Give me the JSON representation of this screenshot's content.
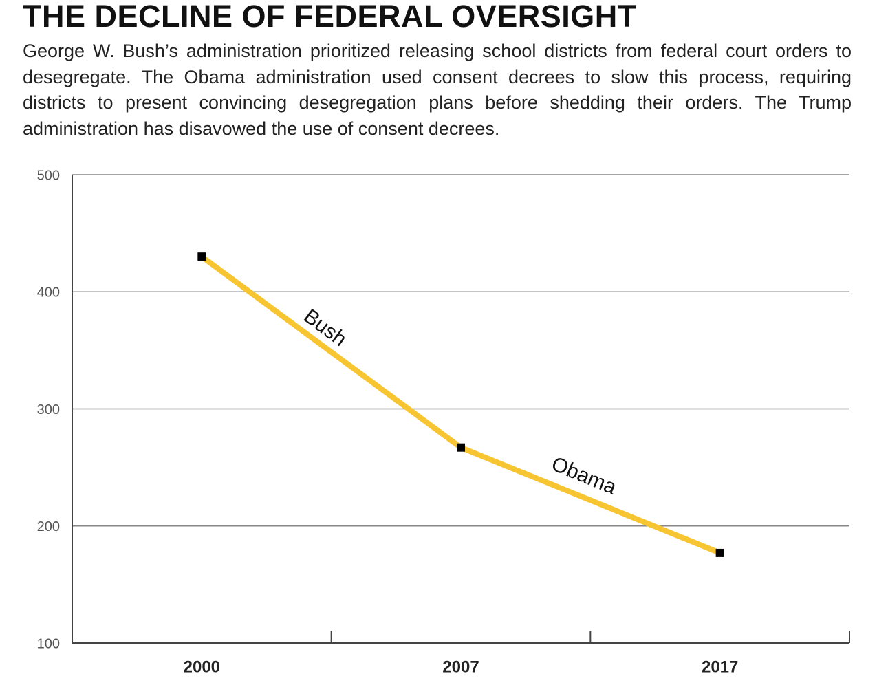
{
  "chart_data": {
    "type": "line",
    "title": "THE DECLINE OF FEDERAL OVERSIGHT",
    "subtitle": "George W. Bush’s administration prioritized releasing school districts from federal court orders to desegregate. The Obama administration used consent decrees to slow this process, requiring districts to present convincing desegregation plans before shedding their orders. The Trump administration has disavowed the use of consent decrees.",
    "categories": [
      "2000",
      "2007",
      "2017"
    ],
    "values": [
      430,
      267,
      177
    ],
    "color": "#f7c531",
    "marker_color": "#000000",
    "annotations": [
      "Bush",
      "Obama"
    ],
    "ylim": [
      100,
      500
    ],
    "yticks": [
      100,
      200,
      300,
      400,
      500
    ],
    "grid": true
  }
}
